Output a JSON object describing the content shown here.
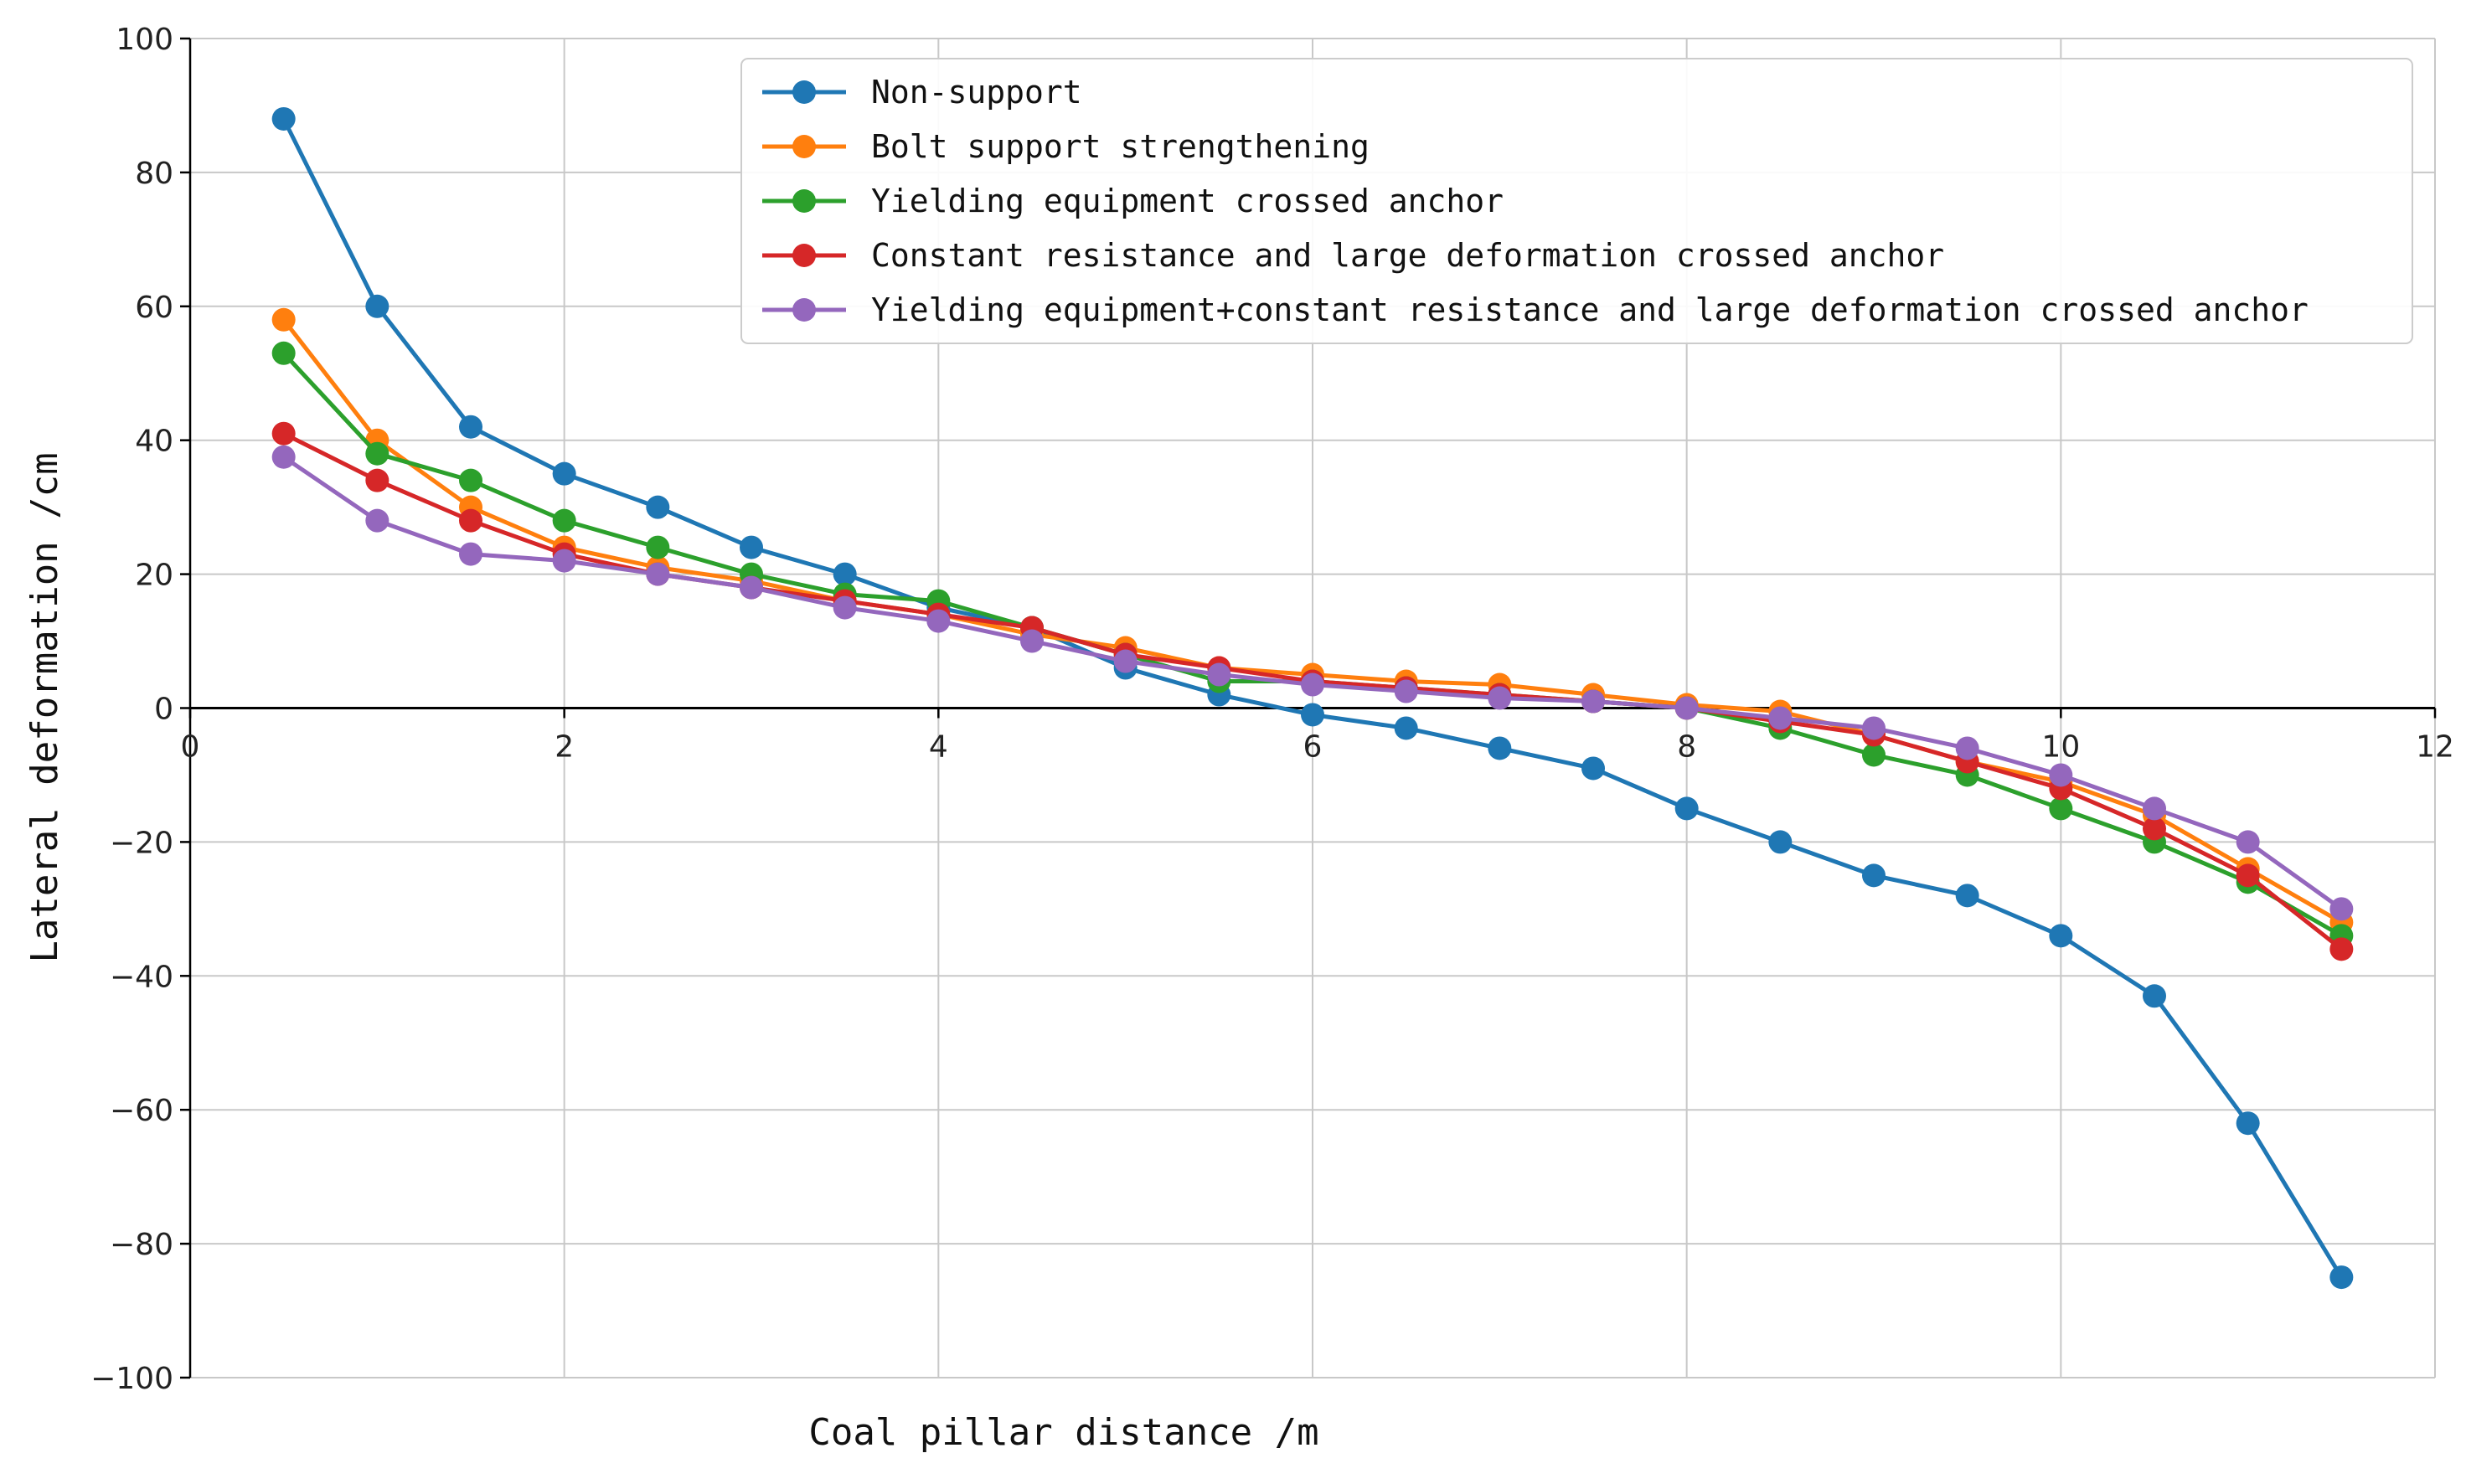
{
  "chart_data": {
    "type": "line",
    "title": "",
    "xlabel": "Coal pillar distance /m",
    "ylabel": "Lateral deformation /cm",
    "xlim": [
      0,
      12
    ],
    "ylim": [
      -100,
      100
    ],
    "x_ticks": [
      0,
      2,
      4,
      6,
      8,
      10,
      12
    ],
    "y_ticks": [
      -100,
      -80,
      -60,
      -40,
      -20,
      0,
      20,
      40,
      60,
      80,
      100
    ],
    "grid": true,
    "legend_position": "top-right",
    "x": [
      0.5,
      1.0,
      1.5,
      2.0,
      2.5,
      3.0,
      3.5,
      4.0,
      4.5,
      5.0,
      5.5,
      6.0,
      6.5,
      7.0,
      7.5,
      8.0,
      8.5,
      9.0,
      9.5,
      10.0,
      10.5,
      11.0,
      11.5
    ],
    "series": [
      {
        "name": "Non-support",
        "color": "#1f77b4",
        "values": [
          88,
          60,
          42,
          35,
          30,
          24,
          20,
          15,
          12,
          6,
          2,
          -1,
          -3,
          -6,
          -9,
          -15,
          -20,
          -25,
          -28,
          -34,
          -43,
          -62,
          -85
        ]
      },
      {
        "name": "Bolt support strengthening",
        "color": "#ff7f0e",
        "values": [
          58,
          40,
          30,
          24,
          21,
          19,
          16,
          14,
          11,
          9,
          6,
          5,
          4,
          3.5,
          2,
          0.5,
          -0.5,
          -4,
          -8,
          -11,
          -16,
          -24,
          -32
        ]
      },
      {
        "name": "Yielding equipment crossed anchor",
        "color": "#2ca02c",
        "values": [
          53,
          38,
          34,
          28,
          24,
          20,
          17,
          16,
          12,
          8,
          4,
          4,
          3,
          2,
          1,
          0,
          -3,
          -7,
          -10,
          -15,
          -20,
          -26,
          -34
        ]
      },
      {
        "name": "Constant resistance and large deformation crossed anchor",
        "color": "#d62728",
        "values": [
          41,
          34,
          28,
          23,
          20,
          18,
          16,
          14,
          12,
          8,
          6,
          4,
          3,
          2,
          1,
          0,
          -2,
          -4,
          -8,
          -12,
          -18,
          -25,
          -36
        ]
      },
      {
        "name": "Yielding equipment+constant resistance and large deformation crossed anchor",
        "color": "#9467bd",
        "values": [
          37.5,
          28,
          23,
          22,
          20,
          18,
          15,
          13,
          10,
          7,
          5,
          3.5,
          2.5,
          1.5,
          1,
          0,
          -1.5,
          -3,
          -6,
          -10,
          -15,
          -20,
          -30
        ]
      }
    ]
  }
}
